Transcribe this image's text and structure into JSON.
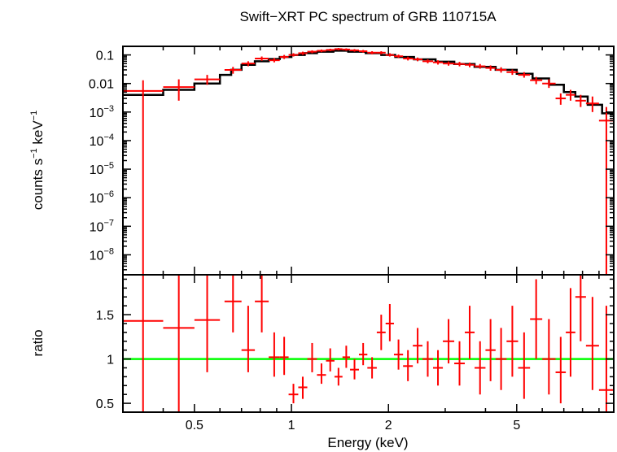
{
  "chart_data": {
    "type": "scatter",
    "title": "Swift−XRT PC spectrum of GRB 110715A",
    "xlabel": "Energy (keV)",
    "xscale": "log",
    "xlim": [
      0.3,
      10
    ],
    "x_ticks": [
      {
        "value": 0.5,
        "label": "0.5"
      },
      {
        "value": 1,
        "label": "1"
      },
      {
        "value": 2,
        "label": "2"
      },
      {
        "value": 5,
        "label": "5"
      }
    ],
    "colors": {
      "data": "#ff0000",
      "model": "#000000",
      "unity": "#00ff00",
      "axes": "#000000"
    },
    "panels": [
      {
        "name": "spectrum",
        "ylabel_base": "counts s",
        "ylabel_sup1": "−1",
        "ylabel_mid": " keV",
        "ylabel_sup2": "−1",
        "yscale": "log",
        "ylim": [
          2e-09,
          0.2
        ],
        "y_ticks": [
          {
            "value": 0.1,
            "base": "0.1",
            "sup": ""
          },
          {
            "value": 0.01,
            "base": "0.01",
            "sup": ""
          },
          {
            "value": 0.001,
            "base": "10",
            "sup": "−3"
          },
          {
            "value": 0.0001,
            "base": "10",
            "sup": "−4"
          },
          {
            "value": 1e-05,
            "base": "10",
            "sup": "−5"
          },
          {
            "value": 1e-06,
            "base": "10",
            "sup": "−6"
          },
          {
            "value": 1e-07,
            "base": "10",
            "sup": "−7"
          },
          {
            "value": 1e-08,
            "base": "10",
            "sup": "−8"
          }
        ],
        "data": [
          {
            "x0": 0.3,
            "x1": 0.4,
            "y": 0.0055,
            "ylo": 1e-10,
            "yhi": 0.013
          },
          {
            "x0": 0.4,
            "x1": 0.5,
            "y": 0.0075,
            "ylo": 0.0025,
            "yhi": 0.014
          },
          {
            "x0": 0.5,
            "x1": 0.6,
            "y": 0.014,
            "ylo": 0.009,
            "yhi": 0.02
          },
          {
            "x0": 0.62,
            "x1": 0.7,
            "y": 0.03,
            "ylo": 0.022,
            "yhi": 0.038
          },
          {
            "x0": 0.7,
            "x1": 0.77,
            "y": 0.05,
            "ylo": 0.04,
            "yhi": 0.06
          },
          {
            "x0": 0.77,
            "x1": 0.85,
            "y": 0.075,
            "ylo": 0.062,
            "yhi": 0.088
          },
          {
            "x0": 0.85,
            "x1": 0.92,
            "y": 0.065,
            "ylo": 0.055,
            "yhi": 0.078
          },
          {
            "x0": 0.92,
            "x1": 0.98,
            "y": 0.085,
            "ylo": 0.072,
            "yhi": 0.1
          },
          {
            "x0": 0.98,
            "x1": 1.05,
            "y": 0.1,
            "ylo": 0.088,
            "yhi": 0.115
          },
          {
            "x0": 1.05,
            "x1": 1.12,
            "y": 0.115,
            "ylo": 0.1,
            "yhi": 0.13
          },
          {
            "x0": 1.12,
            "x1": 1.2,
            "y": 0.13,
            "ylo": 0.115,
            "yhi": 0.145
          },
          {
            "x0": 1.2,
            "x1": 1.28,
            "y": 0.14,
            "ylo": 0.125,
            "yhi": 0.155
          },
          {
            "x0": 1.28,
            "x1": 1.36,
            "y": 0.15,
            "ylo": 0.135,
            "yhi": 0.165
          },
          {
            "x0": 1.36,
            "x1": 1.44,
            "y": 0.16,
            "ylo": 0.145,
            "yhi": 0.175
          },
          {
            "x0": 1.44,
            "x1": 1.52,
            "y": 0.155,
            "ylo": 0.14,
            "yhi": 0.17
          },
          {
            "x0": 1.52,
            "x1": 1.62,
            "y": 0.145,
            "ylo": 0.13,
            "yhi": 0.16
          },
          {
            "x0": 1.62,
            "x1": 1.72,
            "y": 0.135,
            "ylo": 0.12,
            "yhi": 0.15
          },
          {
            "x0": 1.72,
            "x1": 1.84,
            "y": 0.12,
            "ylo": 0.105,
            "yhi": 0.135
          },
          {
            "x0": 1.84,
            "x1": 1.96,
            "y": 0.12,
            "ylo": 0.105,
            "yhi": 0.135
          },
          {
            "x0": 1.96,
            "x1": 2.08,
            "y": 0.1,
            "ylo": 0.088,
            "yhi": 0.115
          },
          {
            "x0": 2.08,
            "x1": 2.22,
            "y": 0.09,
            "ylo": 0.078,
            "yhi": 0.103
          },
          {
            "x0": 2.22,
            "x1": 2.38,
            "y": 0.075,
            "ylo": 0.064,
            "yhi": 0.087
          },
          {
            "x0": 2.38,
            "x1": 2.55,
            "y": 0.07,
            "ylo": 0.06,
            "yhi": 0.081
          },
          {
            "x0": 2.55,
            "x1": 2.75,
            "y": 0.06,
            "ylo": 0.051,
            "yhi": 0.07
          },
          {
            "x0": 2.75,
            "x1": 2.95,
            "y": 0.055,
            "ylo": 0.046,
            "yhi": 0.065
          },
          {
            "x0": 2.95,
            "x1": 3.2,
            "y": 0.05,
            "ylo": 0.042,
            "yhi": 0.059
          },
          {
            "x0": 3.2,
            "x1": 3.45,
            "y": 0.048,
            "ylo": 0.04,
            "yhi": 0.057
          },
          {
            "x0": 3.45,
            "x1": 3.7,
            "y": 0.045,
            "ylo": 0.037,
            "yhi": 0.054
          },
          {
            "x0": 3.7,
            "x1": 4.0,
            "y": 0.04,
            "ylo": 0.033,
            "yhi": 0.048
          },
          {
            "x0": 4.0,
            "x1": 4.3,
            "y": 0.035,
            "ylo": 0.028,
            "yhi": 0.043
          },
          {
            "x0": 4.3,
            "x1": 4.65,
            "y": 0.03,
            "ylo": 0.024,
            "yhi": 0.037
          },
          {
            "x0": 4.65,
            "x1": 5.05,
            "y": 0.025,
            "ylo": 0.02,
            "yhi": 0.031
          },
          {
            "x0": 5.05,
            "x1": 5.5,
            "y": 0.02,
            "ylo": 0.016,
            "yhi": 0.025
          },
          {
            "x0": 5.5,
            "x1": 6.0,
            "y": 0.013,
            "ylo": 0.0095,
            "yhi": 0.017
          },
          {
            "x0": 6.0,
            "x1": 6.6,
            "y": 0.01,
            "ylo": 0.007,
            "yhi": 0.014
          },
          {
            "x0": 6.6,
            "x1": 7.1,
            "y": 0.003,
            "ylo": 0.0018,
            "yhi": 0.0045
          },
          {
            "x0": 7.1,
            "x1": 7.6,
            "y": 0.004,
            "ylo": 0.0025,
            "yhi": 0.006
          },
          {
            "x0": 7.6,
            "x1": 8.2,
            "y": 0.0025,
            "ylo": 0.0015,
            "yhi": 0.004
          },
          {
            "x0": 8.2,
            "x1": 9.0,
            "y": 0.002,
            "ylo": 0.001,
            "yhi": 0.0035
          },
          {
            "x0": 9.0,
            "x1": 10.0,
            "y": 0.0005,
            "ylo": 1e-10,
            "yhi": 0.0015
          }
        ],
        "model": [
          {
            "x0": 0.3,
            "x1": 0.4,
            "y": 0.004
          },
          {
            "x0": 0.4,
            "x1": 0.5,
            "y": 0.006
          },
          {
            "x0": 0.5,
            "x1": 0.6,
            "y": 0.01
          },
          {
            "x0": 0.6,
            "x1": 0.65,
            "y": 0.02
          },
          {
            "x0": 0.65,
            "x1": 0.7,
            "y": 0.03
          },
          {
            "x0": 0.7,
            "x1": 0.77,
            "y": 0.045
          },
          {
            "x0": 0.77,
            "x1": 0.85,
            "y": 0.06
          },
          {
            "x0": 0.85,
            "x1": 0.92,
            "y": 0.072
          },
          {
            "x0": 0.92,
            "x1": 1.0,
            "y": 0.085
          },
          {
            "x0": 1.0,
            "x1": 1.1,
            "y": 0.1
          },
          {
            "x0": 1.1,
            "x1": 1.2,
            "y": 0.115
          },
          {
            "x0": 1.2,
            "x1": 1.35,
            "y": 0.13
          },
          {
            "x0": 1.35,
            "x1": 1.5,
            "y": 0.14
          },
          {
            "x0": 1.5,
            "x1": 1.7,
            "y": 0.13
          },
          {
            "x0": 1.7,
            "x1": 1.9,
            "y": 0.115
          },
          {
            "x0": 1.9,
            "x1": 2.1,
            "y": 0.1
          },
          {
            "x0": 2.1,
            "x1": 2.4,
            "y": 0.085
          },
          {
            "x0": 2.4,
            "x1": 2.8,
            "y": 0.07
          },
          {
            "x0": 2.8,
            "x1": 3.2,
            "y": 0.058
          },
          {
            "x0": 3.2,
            "x1": 3.7,
            "y": 0.048
          },
          {
            "x0": 3.7,
            "x1": 4.3,
            "y": 0.038
          },
          {
            "x0": 4.3,
            "x1": 5.0,
            "y": 0.03
          },
          {
            "x0": 5.0,
            "x1": 5.6,
            "y": 0.022
          },
          {
            "x0": 5.6,
            "x1": 6.3,
            "y": 0.015
          },
          {
            "x0": 6.3,
            "x1": 7.0,
            "y": 0.009
          },
          {
            "x0": 7.0,
            "x1": 7.6,
            "y": 0.005
          },
          {
            "x0": 7.6,
            "x1": 8.3,
            "y": 0.0035
          },
          {
            "x0": 8.3,
            "x1": 9.2,
            "y": 0.0018
          },
          {
            "x0": 9.2,
            "x1": 10.0,
            "y": 0.0009
          }
        ]
      },
      {
        "name": "ratio",
        "ylabel": "ratio",
        "yscale": "linear",
        "ylim": [
          0.4,
          1.95
        ],
        "y_ticks": [
          {
            "value": 0.5,
            "label": "0.5"
          },
          {
            "value": 1,
            "label": "1"
          },
          {
            "value": 1.5,
            "label": "1.5"
          }
        ],
        "reference": 1.0,
        "data": [
          {
            "x0": 0.3,
            "x1": 0.4,
            "y": 1.43,
            "ylo": 0.4,
            "yhi": 1.95
          },
          {
            "x0": 0.4,
            "x1": 0.5,
            "y": 1.35,
            "ylo": 0.4,
            "yhi": 1.95
          },
          {
            "x0": 0.5,
            "x1": 0.6,
            "y": 1.44,
            "ylo": 0.85,
            "yhi": 1.95
          },
          {
            "x0": 0.62,
            "x1": 0.7,
            "y": 1.65,
            "ylo": 1.3,
            "yhi": 1.95
          },
          {
            "x0": 0.7,
            "x1": 0.77,
            "y": 1.1,
            "ylo": 0.85,
            "yhi": 1.6
          },
          {
            "x0": 0.77,
            "x1": 0.85,
            "y": 1.65,
            "ylo": 1.3,
            "yhi": 1.95
          },
          {
            "x0": 0.85,
            "x1": 0.92,
            "y": 1.02,
            "ylo": 0.8,
            "yhi": 1.3
          },
          {
            "x0": 0.92,
            "x1": 0.98,
            "y": 1.02,
            "ylo": 0.82,
            "yhi": 1.25
          },
          {
            "x0": 0.98,
            "x1": 1.05,
            "y": 0.6,
            "ylo": 0.5,
            "yhi": 0.72
          },
          {
            "x0": 1.05,
            "x1": 1.12,
            "y": 0.68,
            "ylo": 0.55,
            "yhi": 0.8
          },
          {
            "x0": 1.12,
            "x1": 1.2,
            "y": 1.0,
            "ylo": 0.85,
            "yhi": 1.18
          },
          {
            "x0": 1.2,
            "x1": 1.28,
            "y": 0.82,
            "ylo": 0.72,
            "yhi": 0.95
          },
          {
            "x0": 1.28,
            "x1": 1.36,
            "y": 0.98,
            "ylo": 0.86,
            "yhi": 1.12
          },
          {
            "x0": 1.36,
            "x1": 1.44,
            "y": 0.8,
            "ylo": 0.7,
            "yhi": 0.9
          },
          {
            "x0": 1.44,
            "x1": 1.52,
            "y": 1.02,
            "ylo": 0.9,
            "yhi": 1.15
          },
          {
            "x0": 1.52,
            "x1": 1.62,
            "y": 0.88,
            "ylo": 0.77,
            "yhi": 1.0
          },
          {
            "x0": 1.62,
            "x1": 1.72,
            "y": 1.05,
            "ylo": 0.93,
            "yhi": 1.18
          },
          {
            "x0": 1.72,
            "x1": 1.84,
            "y": 0.9,
            "ylo": 0.78,
            "yhi": 1.02
          },
          {
            "x0": 1.84,
            "x1": 1.96,
            "y": 1.3,
            "ylo": 1.1,
            "yhi": 1.5
          },
          {
            "x0": 1.96,
            "x1": 2.08,
            "y": 1.4,
            "ylo": 1.2,
            "yhi": 1.62
          },
          {
            "x0": 2.08,
            "x1": 2.22,
            "y": 1.05,
            "ylo": 0.88,
            "yhi": 1.22
          },
          {
            "x0": 2.22,
            "x1": 2.38,
            "y": 0.92,
            "ylo": 0.75,
            "yhi": 1.1
          },
          {
            "x0": 2.38,
            "x1": 2.55,
            "y": 1.15,
            "ylo": 0.95,
            "yhi": 1.35
          },
          {
            "x0": 2.55,
            "x1": 2.75,
            "y": 1.0,
            "ylo": 0.8,
            "yhi": 1.2
          },
          {
            "x0": 2.75,
            "x1": 2.95,
            "y": 0.9,
            "ylo": 0.7,
            "yhi": 1.1
          },
          {
            "x0": 2.95,
            "x1": 3.2,
            "y": 1.2,
            "ylo": 0.95,
            "yhi": 1.45
          },
          {
            "x0": 3.2,
            "x1": 3.45,
            "y": 0.95,
            "ylo": 0.7,
            "yhi": 1.2
          },
          {
            "x0": 3.45,
            "x1": 3.7,
            "y": 1.3,
            "ylo": 1.0,
            "yhi": 1.6
          },
          {
            "x0": 3.7,
            "x1": 4.0,
            "y": 0.9,
            "ylo": 0.6,
            "yhi": 1.2
          },
          {
            "x0": 4.0,
            "x1": 4.3,
            "y": 1.1,
            "ylo": 0.75,
            "yhi": 1.45
          },
          {
            "x0": 4.3,
            "x1": 4.65,
            "y": 1.0,
            "ylo": 0.65,
            "yhi": 1.35
          },
          {
            "x0": 4.65,
            "x1": 5.05,
            "y": 1.2,
            "ylo": 0.8,
            "yhi": 1.6
          },
          {
            "x0": 5.05,
            "x1": 5.5,
            "y": 0.9,
            "ylo": 0.55,
            "yhi": 1.3
          },
          {
            "x0": 5.5,
            "x1": 6.0,
            "y": 1.45,
            "ylo": 1.0,
            "yhi": 1.9
          },
          {
            "x0": 6.0,
            "x1": 6.6,
            "y": 1.0,
            "ylo": 0.6,
            "yhi": 1.45
          },
          {
            "x0": 6.6,
            "x1": 7.1,
            "y": 0.85,
            "ylo": 0.5,
            "yhi": 1.25
          },
          {
            "x0": 7.1,
            "x1": 7.6,
            "y": 1.3,
            "ylo": 0.8,
            "yhi": 1.8
          },
          {
            "x0": 7.6,
            "x1": 8.2,
            "y": 1.7,
            "ylo": 1.2,
            "yhi": 1.95
          },
          {
            "x0": 8.2,
            "x1": 9.0,
            "y": 1.15,
            "ylo": 0.65,
            "yhi": 1.7
          },
          {
            "x0": 9.0,
            "x1": 10.0,
            "y": 0.65,
            "ylo": 0.4,
            "yhi": 1.6
          }
        ]
      }
    ]
  }
}
